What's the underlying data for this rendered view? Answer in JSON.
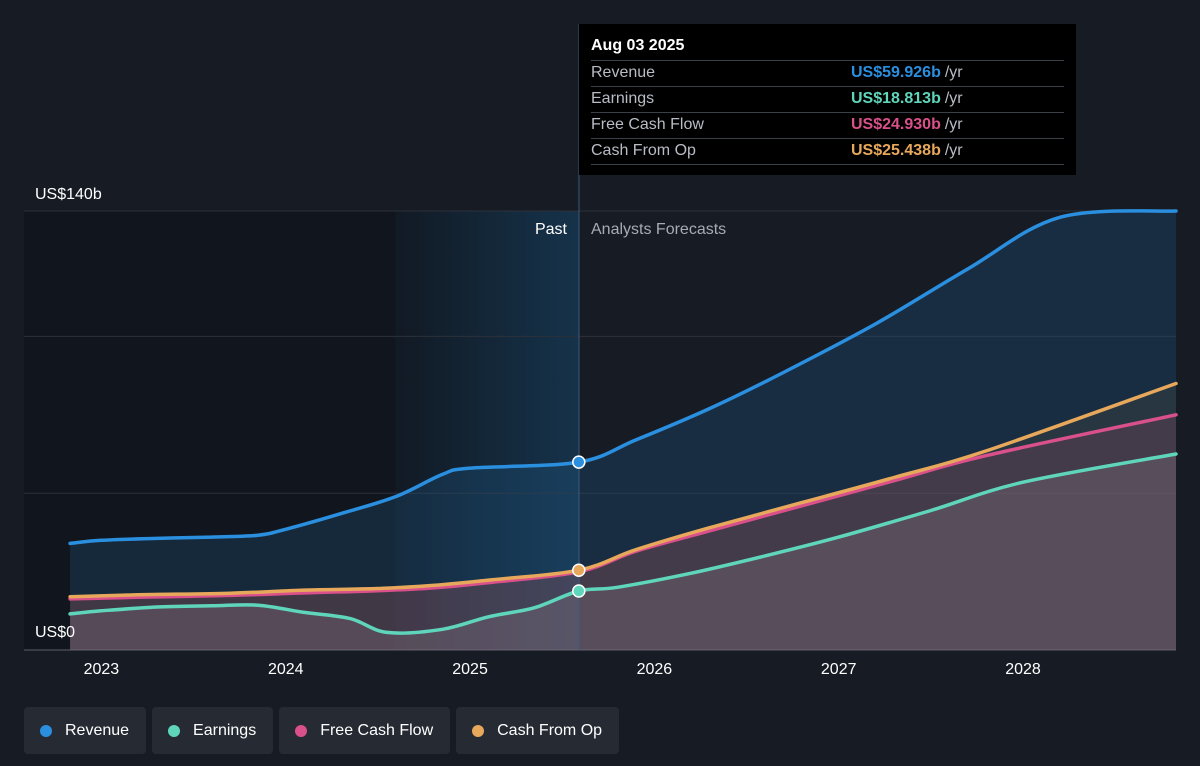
{
  "chart_data": {
    "type": "line",
    "y_axis_labels": {
      "top": "US$140b",
      "bottom": "US$0"
    },
    "ylim": [
      0,
      140
    ],
    "x_tick_labels": [
      "2023",
      "2024",
      "2025",
      "2026",
      "2027",
      "2028"
    ],
    "section_labels": {
      "past": "Past",
      "forecast": "Analysts Forecasts"
    },
    "past_end_date": "2025-08-03",
    "grid": true,
    "legend_position": "bottom-left",
    "series": [
      {
        "name": "Revenue",
        "color": "#2b8fe0",
        "points": [
          [
            2022.83,
            34
          ],
          [
            2023.0,
            35
          ],
          [
            2023.3,
            35.6
          ],
          [
            2023.6,
            36
          ],
          [
            2023.85,
            36.6
          ],
          [
            2024.0,
            38.5
          ],
          [
            2024.3,
            43.5
          ],
          [
            2024.6,
            49
          ],
          [
            2024.85,
            56
          ],
          [
            2025.0,
            58
          ],
          [
            2025.59,
            59.926
          ],
          [
            2025.9,
            67
          ],
          [
            2026.3,
            77
          ],
          [
            2026.7,
            88.5
          ],
          [
            2027.2,
            104
          ],
          [
            2027.7,
            121.5
          ],
          [
            2028.2,
            138
          ],
          [
            2028.83,
            140
          ]
        ]
      },
      {
        "name": "Earnings",
        "color": "#5fd6bb",
        "points": [
          [
            2022.83,
            11.5
          ],
          [
            2023.0,
            12.5
          ],
          [
            2023.3,
            13.7
          ],
          [
            2023.6,
            14.1
          ],
          [
            2023.85,
            14.3
          ],
          [
            2024.1,
            12
          ],
          [
            2024.35,
            10
          ],
          [
            2024.55,
            5.6
          ],
          [
            2024.85,
            6.6
          ],
          [
            2025.1,
            10.6
          ],
          [
            2025.35,
            13.5
          ],
          [
            2025.59,
            18.813
          ],
          [
            2025.8,
            20
          ],
          [
            2026.2,
            24.5
          ],
          [
            2026.6,
            30
          ],
          [
            2027.0,
            36
          ],
          [
            2027.5,
            44.5
          ],
          [
            2028.0,
            53.5
          ],
          [
            2028.83,
            62.5
          ]
        ]
      },
      {
        "name": "Free Cash Flow",
        "color": "#d9508a",
        "points": [
          [
            2022.83,
            16.3
          ],
          [
            2023.2,
            16.8
          ],
          [
            2023.7,
            17.4
          ],
          [
            2024.1,
            18.2
          ],
          [
            2024.5,
            18.9
          ],
          [
            2024.8,
            19.8
          ],
          [
            2025.1,
            21.5
          ],
          [
            2025.59,
            24.93
          ],
          [
            2025.9,
            31.5
          ],
          [
            2026.3,
            38
          ],
          [
            2026.8,
            46
          ],
          [
            2027.3,
            54
          ],
          [
            2027.8,
            62
          ],
          [
            2028.83,
            75
          ]
        ]
      },
      {
        "name": "Cash From Op",
        "color": "#e8a85c",
        "points": [
          [
            2022.83,
            17
          ],
          [
            2023.2,
            17.6
          ],
          [
            2023.7,
            18.1
          ],
          [
            2024.1,
            19.1
          ],
          [
            2024.5,
            19.6
          ],
          [
            2024.8,
            20.6
          ],
          [
            2025.1,
            22.3
          ],
          [
            2025.59,
            25.438
          ],
          [
            2025.9,
            32
          ],
          [
            2026.3,
            39
          ],
          [
            2026.8,
            47
          ],
          [
            2027.3,
            55
          ],
          [
            2027.8,
            63.5
          ],
          [
            2028.83,
            85
          ]
        ]
      }
    ]
  },
  "tooltip": {
    "date": "Aug 03 2025",
    "rows": [
      {
        "label": "Revenue",
        "value": "US$59.926b",
        "unit": "/yr",
        "color": "#2b8fe0"
      },
      {
        "label": "Earnings",
        "value": "US$18.813b",
        "unit": "/yr",
        "color": "#5fd6bb"
      },
      {
        "label": "Free Cash Flow",
        "value": "US$24.930b",
        "unit": "/yr",
        "color": "#d9508a"
      },
      {
        "label": "Cash From Op",
        "value": "US$25.438b",
        "unit": "/yr",
        "color": "#e8a85c"
      }
    ]
  },
  "legend": [
    {
      "label": "Revenue",
      "color": "#2b8fe0"
    },
    {
      "label": "Earnings",
      "color": "#5fd6bb"
    },
    {
      "label": "Free Cash Flow",
      "color": "#d9508a"
    },
    {
      "label": "Cash From Op",
      "color": "#e8a85c"
    }
  ]
}
